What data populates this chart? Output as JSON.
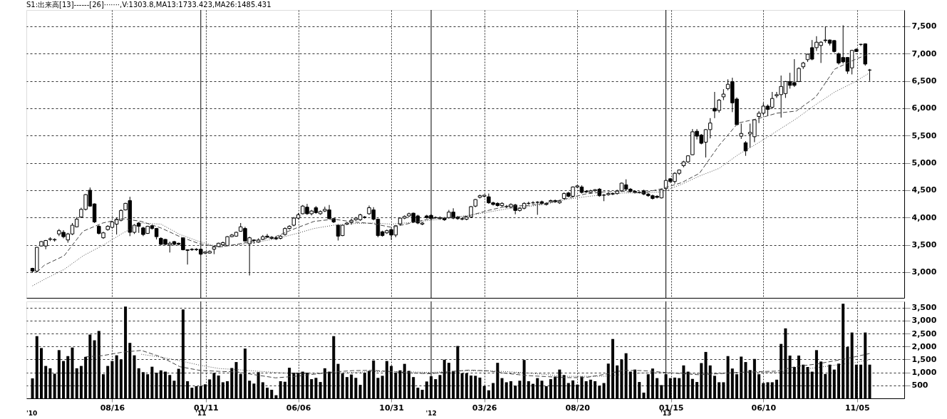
{
  "chart_data": [
    {
      "type": "candlestick",
      "title": "S1:出来高[13]------[26]·······,V:1303.8,MA13:1733.423,MA26:1485.431",
      "x": [
        "2010-04-12",
        "2010-04-19",
        "2010-04-26",
        "2010-05-03",
        "2010-05-10",
        "2010-05-17",
        "2010-05-24",
        "2010-05-31",
        "2010-06-07",
        "2010-06-14",
        "2010-06-21",
        "2010-06-28",
        "2010-07-05",
        "2010-07-12",
        "2010-07-19",
        "2010-07-26",
        "2010-08-02",
        "2010-08-09",
        "2010-08-16",
        "2010-08-23",
        "2010-08-30",
        "2010-09-06",
        "2010-09-13",
        "2010-09-20",
        "2010-09-27",
        "2010-10-04",
        "2010-10-11",
        "2010-10-18",
        "2010-10-25",
        "2010-11-01",
        "2010-11-08",
        "2010-11-15",
        "2010-11-22",
        "2010-11-29",
        "2010-12-06",
        "2010-12-13",
        "2010-12-20",
        "2010-12-27",
        "2011-01-03",
        "2011-01-10",
        "2011-01-17",
        "2011-01-24",
        "2011-01-31",
        "2011-02-07",
        "2011-02-14",
        "2011-02-21",
        "2011-02-28",
        "2011-03-07",
        "2011-03-14",
        "2011-03-21",
        "2011-03-28",
        "2011-04-04",
        "2011-04-11",
        "2011-04-18",
        "2011-04-25",
        "2011-05-02",
        "2011-05-09",
        "2011-05-16",
        "2011-05-23",
        "2011-05-30",
        "2011-06-06",
        "2011-06-13",
        "2011-06-20",
        "2011-06-27",
        "2011-07-04",
        "2011-07-11",
        "2011-07-18",
        "2011-07-25",
        "2011-08-01",
        "2011-08-08",
        "2011-08-15",
        "2011-08-22",
        "2011-08-29",
        "2011-09-05",
        "2011-09-12",
        "2011-09-19",
        "2011-09-26",
        "2011-10-03",
        "2011-10-10",
        "2011-10-17",
        "2011-10-24",
        "2011-10-31",
        "2011-11-07",
        "2011-11-14",
        "2011-11-21",
        "2011-11-28",
        "2011-12-05",
        "2011-12-12",
        "2011-12-19",
        "2011-12-26",
        "2012-01-02",
        "2012-01-09",
        "2012-01-16",
        "2012-01-23",
        "2012-01-30",
        "2012-02-06",
        "2012-02-13",
        "2012-02-20",
        "2012-02-27",
        "2012-03-05",
        "2012-03-12",
        "2012-03-19",
        "2012-03-26",
        "2012-04-02",
        "2012-04-09",
        "2012-04-16",
        "2012-04-23",
        "2012-04-30",
        "2012-05-07",
        "2012-05-14",
        "2012-05-21",
        "2012-05-28",
        "2012-06-04",
        "2012-06-11",
        "2012-06-18",
        "2012-06-25",
        "2012-07-02",
        "2012-07-09",
        "2012-07-16",
        "2012-07-23",
        "2012-07-30",
        "2012-08-06",
        "2012-08-13",
        "2012-08-20",
        "2012-08-27",
        "2012-09-03",
        "2012-09-10",
        "2012-09-17",
        "2012-09-24",
        "2012-10-01",
        "2012-10-08",
        "2012-10-15",
        "2012-10-22",
        "2012-10-29",
        "2012-11-05",
        "2012-11-12",
        "2012-11-19",
        "2012-11-26",
        "2012-12-03",
        "2012-12-10",
        "2012-12-17",
        "2012-12-24",
        "2012-12-31",
        "2013-01-07",
        "2013-01-14",
        "2013-01-21",
        "2013-01-28",
        "2013-02-04",
        "2013-02-11",
        "2013-02-18",
        "2013-02-25",
        "2013-03-04",
        "2013-03-11",
        "2013-03-18",
        "2013-03-25",
        "2013-04-01",
        "2013-04-08",
        "2013-04-15",
        "2013-04-22",
        "2013-04-29",
        "2013-05-06",
        "2013-05-13",
        "2013-05-20",
        "2013-05-27",
        "2013-06-03",
        "2013-06-10",
        "2013-06-17",
        "2013-06-24",
        "2013-07-01",
        "2013-07-08",
        "2013-07-15",
        "2013-07-22",
        "2013-07-29",
        "2013-08-05",
        "2013-08-12",
        "2013-08-19",
        "2013-08-26",
        "2013-09-02",
        "2013-09-09",
        "2013-09-16",
        "2013-09-23",
        "2013-09-30",
        "2013-10-07",
        "2013-10-14",
        "2013-10-21",
        "2013-10-28",
        "2013-11-04",
        "2013-11-11",
        "2013-11-18",
        "2013-11-25"
      ],
      "ohlc": [
        [
          3070,
          3080,
          2990,
          3020
        ],
        [
          3020,
          3460,
          3000,
          3455
        ],
        [
          3480,
          3570,
          3470,
          3560
        ],
        [
          3480,
          3590,
          3420,
          3580
        ],
        [
          3600,
          3640,
          3570,
          3610
        ],
        [
          3590,
          3620,
          3560,
          3600
        ],
        [
          3700,
          3790,
          3660,
          3760
        ],
        [
          3730,
          3770,
          3620,
          3650
        ],
        [
          3590,
          3720,
          3540,
          3700
        ],
        [
          3700,
          3900,
          3680,
          3860
        ],
        [
          3830,
          4010,
          3820,
          3970
        ],
        [
          4010,
          4180,
          3990,
          4150
        ],
        [
          4150,
          4430,
          4130,
          4420
        ],
        [
          4500,
          4550,
          4200,
          4210
        ],
        [
          4250,
          4260,
          3900,
          3920
        ],
        [
          3840,
          3860,
          3690,
          3710
        ],
        [
          3630,
          3740,
          3610,
          3720
        ],
        [
          3780,
          3860,
          3760,
          3840
        ],
        [
          3820,
          3940,
          3800,
          3920
        ],
        [
          3880,
          4000,
          3690,
          3970
        ],
        [
          3950,
          4150,
          3930,
          4130
        ],
        [
          4140,
          4270,
          4130,
          4260
        ],
        [
          4310,
          4380,
          3660,
          3730
        ],
        [
          3730,
          3880,
          3700,
          3860
        ],
        [
          3900,
          3920,
          3720,
          3840
        ],
        [
          3810,
          3830,
          3660,
          3690
        ],
        [
          3710,
          3850,
          3700,
          3840
        ],
        [
          3850,
          3870,
          3780,
          3800
        ],
        [
          3800,
          3810,
          3600,
          3650
        ],
        [
          3620,
          3640,
          3490,
          3510
        ],
        [
          3600,
          3610,
          3490,
          3510
        ],
        [
          3500,
          3560,
          3360,
          3530
        ],
        [
          3560,
          3570,
          3490,
          3510
        ],
        [
          3530,
          3540,
          3490,
          3510
        ],
        [
          3630,
          3640,
          3400,
          3410
        ],
        [
          3410,
          3420,
          3140,
          3400
        ],
        [
          3410,
          3440,
          3390,
          3420
        ],
        [
          3410,
          3440,
          3390,
          3420
        ],
        [
          3420,
          3430,
          3310,
          3330
        ],
        [
          3350,
          3380,
          3330,
          3370
        ],
        [
          3350,
          3400,
          3340,
          3380
        ],
        [
          3420,
          3470,
          3330,
          3460
        ],
        [
          3470,
          3540,
          3460,
          3530
        ],
        [
          3500,
          3560,
          3480,
          3540
        ],
        [
          3490,
          3660,
          3480,
          3650
        ],
        [
          3650,
          3700,
          3640,
          3680
        ],
        [
          3660,
          3740,
          3650,
          3730
        ],
        [
          3750,
          3900,
          3740,
          3830
        ],
        [
          3800,
          3830,
          3560,
          3570
        ],
        [
          3520,
          3650,
          2940,
          3630
        ],
        [
          3590,
          3600,
          3520,
          3580
        ],
        [
          3550,
          3620,
          3540,
          3590
        ],
        [
          3600,
          3680,
          3590,
          3650
        ],
        [
          3660,
          3700,
          3630,
          3640
        ],
        [
          3640,
          3660,
          3600,
          3620
        ],
        [
          3630,
          3650,
          3590,
          3610
        ],
        [
          3620,
          3680,
          3600,
          3660
        ],
        [
          3690,
          3820,
          3670,
          3800
        ],
        [
          3800,
          3860,
          3780,
          3840
        ],
        [
          3860,
          4010,
          3840,
          3990
        ],
        [
          3990,
          4080,
          3970,
          4050
        ],
        [
          4070,
          4230,
          4060,
          4210
        ],
        [
          4190,
          4250,
          4050,
          4070
        ],
        [
          4070,
          4140,
          4040,
          4120
        ],
        [
          4180,
          4210,
          4070,
          4090
        ],
        [
          4070,
          4130,
          4050,
          4110
        ],
        [
          4120,
          4200,
          4100,
          4150
        ],
        [
          4140,
          4230,
          3970,
          3980
        ],
        [
          3980,
          3990,
          3900,
          3920
        ],
        [
          3860,
          3880,
          3580,
          3660
        ],
        [
          3670,
          3870,
          3660,
          3860
        ],
        [
          3880,
          3920,
          3860,
          3900
        ],
        [
          3910,
          3980,
          3870,
          3950
        ],
        [
          3960,
          4010,
          3940,
          3990
        ],
        [
          3960,
          4070,
          3940,
          4050
        ],
        [
          4000,
          4030,
          3980,
          4010
        ],
        [
          4070,
          4220,
          4050,
          4180
        ],
        [
          4140,
          4190,
          3950,
          3970
        ],
        [
          3970,
          3980,
          3640,
          3670
        ],
        [
          3740,
          3760,
          3650,
          3670
        ],
        [
          3720,
          3780,
          3700,
          3760
        ],
        [
          3780,
          3800,
          3590,
          3680
        ],
        [
          3680,
          3860,
          3640,
          3850
        ],
        [
          3880,
          4000,
          3860,
          3990
        ],
        [
          3990,
          4040,
          3970,
          4020
        ],
        [
          4030,
          4090,
          4010,
          4070
        ],
        [
          4080,
          4090,
          3900,
          3920
        ],
        [
          4030,
          4050,
          3880,
          3900
        ],
        [
          3880,
          3920,
          3860,
          3900
        ],
        [
          4030,
          4050,
          3980,
          4000
        ],
        [
          4040,
          4060,
          3960,
          3980
        ],
        [
          4000,
          4020,
          3980,
          4000
        ],
        [
          4000,
          4020,
          3960,
          3980
        ],
        [
          3990,
          4010,
          3940,
          3960
        ],
        [
          4000,
          4140,
          3980,
          4100
        ],
        [
          4100,
          4170,
          3970,
          3990
        ],
        [
          4010,
          4030,
          3960,
          3980
        ],
        [
          3970,
          4000,
          3950,
          3980
        ],
        [
          3970,
          4030,
          3950,
          4010
        ],
        [
          4010,
          4210,
          3990,
          4200
        ],
        [
          4210,
          4340,
          4190,
          4330
        ],
        [
          4370,
          4420,
          4350,
          4400
        ],
        [
          4390,
          4420,
          4370,
          4410
        ],
        [
          4380,
          4440,
          4250,
          4270
        ],
        [
          4270,
          4290,
          4220,
          4240
        ],
        [
          4260,
          4280,
          4200,
          4220
        ],
        [
          4220,
          4280,
          4200,
          4260
        ],
        [
          4200,
          4230,
          4170,
          4200
        ],
        [
          4190,
          4260,
          4170,
          4240
        ],
        [
          4230,
          4250,
          4060,
          4130
        ],
        [
          4130,
          4190,
          4110,
          4170
        ],
        [
          4170,
          4280,
          4150,
          4260
        ],
        [
          4260,
          4290,
          4240,
          4260
        ],
        [
          4270,
          4300,
          4250,
          4270
        ],
        [
          4280,
          4300,
          4050,
          4280
        ],
        [
          4290,
          4310,
          4240,
          4260
        ],
        [
          4260,
          4280,
          4220,
          4240
        ],
        [
          4290,
          4330,
          4270,
          4310
        ],
        [
          4310,
          4330,
          4270,
          4290
        ],
        [
          4270,
          4320,
          4250,
          4300
        ],
        [
          4350,
          4460,
          4330,
          4440
        ],
        [
          4450,
          4470,
          4370,
          4390
        ],
        [
          4390,
          4570,
          4370,
          4560
        ],
        [
          4560,
          4600,
          4540,
          4580
        ],
        [
          4560,
          4590,
          4440,
          4460
        ],
        [
          4480,
          4500,
          4450,
          4470
        ],
        [
          4460,
          4510,
          4440,
          4490
        ],
        [
          4490,
          4520,
          4470,
          4510
        ],
        [
          4520,
          4540,
          4380,
          4400
        ],
        [
          4410,
          4430,
          4300,
          4410
        ],
        [
          4420,
          4460,
          4400,
          4440
        ],
        [
          4440,
          4460,
          4410,
          4430
        ],
        [
          4440,
          4510,
          4420,
          4490
        ],
        [
          4490,
          4640,
          4470,
          4630
        ],
        [
          4600,
          4700,
          4500,
          4520
        ],
        [
          4520,
          4540,
          4460,
          4480
        ],
        [
          4480,
          4500,
          4440,
          4460
        ],
        [
          4460,
          4480,
          4440,
          4460
        ],
        [
          4490,
          4510,
          4410,
          4430
        ],
        [
          4430,
          4450,
          4380,
          4400
        ],
        [
          4400,
          4420,
          4330,
          4350
        ],
        [
          4390,
          4410,
          4350,
          4370
        ],
        [
          4360,
          4520,
          4350,
          4510
        ],
        [
          4530,
          4690,
          4510,
          4680
        ],
        [
          4710,
          4720,
          4630,
          4660
        ],
        [
          4660,
          4830,
          4620,
          4810
        ],
        [
          4810,
          4880,
          4780,
          4870
        ],
        [
          4950,
          5040,
          4920,
          5020
        ],
        [
          5020,
          5140,
          5000,
          5130
        ],
        [
          5150,
          5620,
          5140,
          5570
        ],
        [
          5580,
          5620,
          5430,
          5490
        ],
        [
          5510,
          5530,
          5340,
          5360
        ],
        [
          5380,
          5620,
          5100,
          5610
        ],
        [
          5610,
          5820,
          5450,
          5730
        ],
        [
          6000,
          6300,
          5820,
          5950
        ],
        [
          5960,
          6170,
          5920,
          6150
        ],
        [
          6210,
          6350,
          6150,
          6260
        ],
        [
          6360,
          6530,
          6330,
          6440
        ],
        [
          6490,
          6560,
          5930,
          6100
        ],
        [
          6170,
          6200,
          5690,
          5700
        ],
        [
          5490,
          5720,
          5440,
          5540
        ],
        [
          5370,
          5400,
          5130,
          5220
        ],
        [
          5530,
          5720,
          5280,
          5560
        ],
        [
          5480,
          5800,
          5380,
          5790
        ],
        [
          5850,
          5950,
          5730,
          5910
        ],
        [
          5910,
          6100,
          5870,
          6040
        ],
        [
          6040,
          6070,
          5870,
          5980
        ],
        [
          6020,
          6300,
          5990,
          6180
        ],
        [
          6230,
          6300,
          6190,
          6250
        ],
        [
          6250,
          6600,
          5830,
          6400
        ],
        [
          6270,
          6500,
          6190,
          6490
        ],
        [
          6490,
          6650,
          6360,
          6420
        ],
        [
          6470,
          6900,
          6390,
          6420
        ],
        [
          6490,
          6750,
          6480,
          6730
        ],
        [
          6760,
          6850,
          6720,
          6830
        ],
        [
          6890,
          7000,
          6850,
          6990
        ],
        [
          7110,
          7250,
          6880,
          6900
        ],
        [
          7110,
          7320,
          7050,
          7210
        ],
        [
          7150,
          7230,
          6830,
          7210
        ],
        [
          7250,
          7500,
          7200,
          7240
        ],
        [
          7250,
          7260,
          7150,
          7190
        ],
        [
          7240,
          7250,
          7020,
          7040
        ],
        [
          7000,
          7020,
          6800,
          6830
        ],
        [
          6930,
          7520,
          6820,
          6850
        ],
        [
          6930,
          6940,
          6630,
          6680
        ],
        [
          6740,
          7070,
          6620,
          7060
        ],
        [
          7080,
          7100,
          7030,
          7040
        ],
        [
          7170,
          7180,
          7140,
          7170
        ],
        [
          7180,
          7190,
          6780,
          6810
        ],
        [
          6700,
          6720,
          6500,
          6700
        ]
      ],
      "series": [
        {
          "type": "line",
          "color": "#444444",
          "line_style": "dashed",
          "x": [
            "2010-04-19",
            "2010-05",
            "2010-06",
            "2010-07",
            "2010-08",
            "2010-09",
            "2010-10",
            "2010-11",
            "2010-12",
            "2011-01",
            "2011-02",
            "2011-03",
            "2011-04",
            "2011-05",
            "2011-06",
            "2011-07",
            "2011-08",
            "2011-09",
            "2011-10",
            "2011-11",
            "2011-12",
            "2012-01",
            "2012-02",
            "2012-03",
            "2012-04",
            "2012-05",
            "2012-06",
            "2012-07",
            "2012-08",
            "2012-09",
            "2012-10",
            "2012-11",
            "2012-12",
            "2013-01",
            "2013-02",
            "2013-03",
            "2013-04",
            "2013-05",
            "2013-06",
            "2013-07",
            "2013-08",
            "2013-09",
            "2013-10",
            "2013-11",
            "2013-11-25"
          ],
          "values": [
            3000,
            3130,
            3300,
            3750,
            3900,
            3980,
            3930,
            3810,
            3650,
            3520,
            3460,
            3510,
            3580,
            3650,
            3800,
            3930,
            3970,
            3920,
            3890,
            3820,
            3900,
            3980,
            4000,
            4030,
            4130,
            4210,
            4220,
            4260,
            4340,
            4430,
            4470,
            4480,
            4450,
            4530,
            4640,
            4810,
            5320,
            5730,
            5810,
            5910,
            5950,
            6210,
            6720,
            6890,
            7000
          ]
        },
        {
          "type": "line",
          "color": "#444444",
          "line_style": "dotted",
          "x": [
            "2010-04-12",
            "2010-05",
            "2010-06",
            "2010-07",
            "2010-08",
            "2010-09",
            "2010-10",
            "2010-11",
            "2010-12",
            "2011-01",
            "2011-02",
            "2011-03",
            "2011-04",
            "2011-05",
            "2011-06",
            "2011-07",
            "2011-08",
            "2011-09",
            "2011-10",
            "2011-11",
            "2011-12",
            "2012-01",
            "2012-02",
            "2012-03",
            "2012-04",
            "2012-05",
            "2012-06",
            "2012-07",
            "2012-08",
            "2012-09",
            "2012-10",
            "2012-11",
            "2012-12",
            "2013-01",
            "2013-02",
            "2013-03",
            "2013-04",
            "2013-05",
            "2013-06",
            "2013-07",
            "2013-08",
            "2013-09",
            "2013-10",
            "2013-11",
            "2013-11-25"
          ],
          "values": [
            2750,
            2870,
            3050,
            3300,
            3490,
            3710,
            3900,
            3880,
            3690,
            3560,
            3460,
            3500,
            3550,
            3610,
            3700,
            3800,
            3860,
            3890,
            3900,
            3880,
            3910,
            3950,
            3990,
            4040,
            4100,
            4160,
            4200,
            4240,
            4330,
            4380,
            4420,
            4450,
            4450,
            4470,
            4610,
            4760,
            4900,
            5150,
            5360,
            5580,
            5810,
            6070,
            6300,
            6480,
            6650
          ]
        }
      ],
      "xlim": [
        "2010-04-08",
        "2014-01-13"
      ],
      "xticks": [
        {
          "value": "2010-08-16",
          "label": null
        },
        {
          "value": "2011-01-11",
          "label": null
        },
        {
          "value": "2011-06-06",
          "label": null
        },
        {
          "value": "2011-10-31",
          "label": null
        },
        {
          "value": "2012-03-26",
          "label": null
        },
        {
          "value": "2012-08-20",
          "label": null
        },
        {
          "value": "2013-01-15",
          "label": null
        },
        {
          "value": "2013-06-10",
          "label": null
        },
        {
          "value": "2013-11-05",
          "label": null
        }
      ],
      "ylim": [
        2530,
        7800
      ],
      "yticks": [
        {
          "value": 3000,
          "label": "3,000"
        },
        {
          "value": 3500,
          "label": "3,500"
        },
        {
          "value": 4000,
          "label": "4,000"
        },
        {
          "value": 4500,
          "label": "4,500"
        },
        {
          "value": 5000,
          "label": "5,000"
        },
        {
          "value": 5500,
          "label": "5,500"
        },
        {
          "value": 6000,
          "label": "6,000"
        },
        {
          "value": 6500,
          "label": "6,500"
        },
        {
          "value": 7000,
          "label": "7,000"
        },
        {
          "value": 7500,
          "label": "7,500"
        }
      ],
      "grid": true,
      "tick_labels": "y",
      "ref_lines": [
        {
          "axis": "x",
          "value": "2011-01-03",
          "color": "#000000"
        },
        {
          "axis": "x",
          "value": "2012-01-02",
          "color": "#000000"
        },
        {
          "axis": "x",
          "value": "2013-01-07",
          "color": "#000000"
        }
      ]
    },
    {
      "type": "bar",
      "x": [
        "2010-04-12",
        "2010-04-19",
        "2010-04-26",
        "2010-05-03",
        "2010-05-10",
        "2010-05-17",
        "2010-05-24",
        "2010-05-31",
        "2010-06-07",
        "2010-06-14",
        "2010-06-21",
        "2010-06-28",
        "2010-07-05",
        "2010-07-12",
        "2010-07-19",
        "2010-07-26",
        "2010-08-02",
        "2010-08-09",
        "2010-08-16",
        "2010-08-23",
        "2010-08-30",
        "2010-09-06",
        "2010-09-13",
        "2010-09-20",
        "2010-09-27",
        "2010-10-04",
        "2010-10-11",
        "2010-10-18",
        "2010-10-25",
        "2010-11-01",
        "2010-11-08",
        "2010-11-15",
        "2010-11-22",
        "2010-11-29",
        "2010-12-06",
        "2010-12-13",
        "2010-12-20",
        "2010-12-27",
        "2011-01-03",
        "2011-01-10",
        "2011-01-17",
        "2011-01-24",
        "2011-01-31",
        "2011-02-07",
        "2011-02-14",
        "2011-02-21",
        "2011-02-28",
        "2011-03-07",
        "2011-03-14",
        "2011-03-21",
        "2011-03-28",
        "2011-04-04",
        "2011-04-11",
        "2011-04-18",
        "2011-04-25",
        "2011-05-02",
        "2011-05-09",
        "2011-05-16",
        "2011-05-23",
        "2011-05-30",
        "2011-06-06",
        "2011-06-13",
        "2011-06-20",
        "2011-06-27",
        "2011-07-04",
        "2011-07-11",
        "2011-07-18",
        "2011-07-25",
        "2011-08-01",
        "2011-08-08",
        "2011-08-15",
        "2011-08-22",
        "2011-08-29",
        "2011-09-05",
        "2011-09-12",
        "2011-09-19",
        "2011-09-26",
        "2011-10-03",
        "2011-10-10",
        "2011-10-17",
        "2011-10-24",
        "2011-10-31",
        "2011-11-07",
        "2011-11-14",
        "2011-11-21",
        "2011-11-28",
        "2011-12-05",
        "2011-12-12",
        "2011-12-19",
        "2011-12-26",
        "2012-01-02",
        "2012-01-09",
        "2012-01-16",
        "2012-01-23",
        "2012-01-30",
        "2012-02-06",
        "2012-02-13",
        "2012-02-20",
        "2012-02-27",
        "2012-03-05",
        "2012-03-12",
        "2012-03-19",
        "2012-03-26",
        "2012-04-02",
        "2012-04-09",
        "2012-04-16",
        "2012-04-23",
        "2012-04-30",
        "2012-05-07",
        "2012-05-14",
        "2012-05-21",
        "2012-05-28",
        "2012-06-04",
        "2012-06-11",
        "2012-06-18",
        "2012-06-25",
        "2012-07-02",
        "2012-07-09",
        "2012-07-16",
        "2012-07-23",
        "2012-07-30",
        "2012-08-06",
        "2012-08-13",
        "2012-08-20",
        "2012-08-27",
        "2012-09-03",
        "2012-09-10",
        "2012-09-17",
        "2012-09-24",
        "2012-10-01",
        "2012-10-08",
        "2012-10-15",
        "2012-10-22",
        "2012-10-29",
        "2012-11-05",
        "2012-11-12",
        "2012-11-19",
        "2012-11-26",
        "2012-12-03",
        "2012-12-10",
        "2012-12-17",
        "2012-12-24",
        "2012-12-31",
        "2013-01-07",
        "2013-01-14",
        "2013-01-21",
        "2013-01-28",
        "2013-02-04",
        "2013-02-11",
        "2013-02-18",
        "2013-02-25",
        "2013-03-04",
        "2013-03-11",
        "2013-03-18",
        "2013-03-25",
        "2013-04-01",
        "2013-04-08",
        "2013-04-15",
        "2013-04-22",
        "2013-04-29",
        "2013-05-06",
        "2013-05-13",
        "2013-05-20",
        "2013-05-27",
        "2013-06-03",
        "2013-06-10",
        "2013-06-17",
        "2013-06-24",
        "2013-07-01",
        "2013-07-08",
        "2013-07-15",
        "2013-07-22",
        "2013-07-29",
        "2013-08-05",
        "2013-08-12",
        "2013-08-19",
        "2013-08-26",
        "2013-09-02",
        "2013-09-09",
        "2013-09-16",
        "2013-09-23",
        "2013-09-30",
        "2013-10-07",
        "2013-10-14",
        "2013-10-21",
        "2013-10-28",
        "2013-11-04",
        "2013-11-11",
        "2013-11-18",
        "2013-11-25"
      ],
      "series": [
        {
          "type": "bar",
          "color": "#000000",
          "values": [
            770,
            2400,
            1940,
            1250,
            1160,
            950,
            1860,
            1440,
            1630,
            1960,
            1160,
            1250,
            1600,
            2460,
            2240,
            2600,
            930,
            1250,
            1440,
            1660,
            1500,
            3540,
            2140,
            1660,
            1160,
            1010,
            930,
            1220,
            990,
            1080,
            1030,
            900,
            680,
            1140,
            3430,
            660,
            410,
            470,
            470,
            540,
            730,
            980,
            880,
            620,
            660,
            1170,
            1400,
            940,
            1920,
            680,
            570,
            1010,
            620,
            410,
            330,
            120,
            660,
            640,
            1180,
            990,
            990,
            1030,
            990,
            740,
            790,
            630,
            1160,
            1030,
            2400,
            1330,
            960,
            820,
            920,
            790,
            520,
            990,
            1060,
            1460,
            790,
            870,
            1440,
            1250,
            990,
            1080,
            1330,
            1060,
            820,
            410,
            330,
            650,
            850,
            740,
            900,
            1490,
            1370,
            1050,
            2020,
            970,
            970,
            880,
            870,
            800,
            470,
            310,
            590,
            1370,
            780,
            620,
            660,
            490,
            680,
            1480,
            660,
            560,
            780,
            680,
            470,
            740,
            840,
            1110,
            900,
            590,
            690,
            530,
            840,
            660,
            720,
            660,
            490,
            590,
            1340,
            2290,
            1270,
            1500,
            1740,
            1030,
            1110,
            630,
            220,
            930,
            1150,
            780,
            510,
            930,
            780,
            800,
            780,
            1270,
            1030,
            750,
            630,
            1360,
            1790,
            1270,
            870,
            620,
            620,
            1630,
            1150,
            930,
            1610,
            1400,
            1090,
            1520,
            930,
            590,
            620,
            620,
            720,
            2100,
            2700,
            1650,
            1210,
            1650,
            1300,
            1210,
            1030,
            1860,
            1420,
            940,
            1300,
            1110,
            1340,
            3650,
            1980,
            2540,
            1300,
            1300,
            2540,
            1300
          ]
        },
        {
          "type": "line",
          "color": "#444444",
          "line_style": "dashed",
          "x": [
            "2010-07-05",
            "2010-08",
            "2010-09",
            "2010-10",
            "2010-11",
            "2010-12",
            "2011-01",
            "2011-02",
            "2011-03",
            "2011-04",
            "2011-05",
            "2011-06",
            "2011-07",
            "2011-08",
            "2011-09",
            "2011-10",
            "2011-11",
            "2011-12",
            "2012-01",
            "2012-02",
            "2012-03",
            "2012-04",
            "2012-05",
            "2012-06",
            "2012-07",
            "2012-08",
            "2012-09",
            "2012-10",
            "2012-11",
            "2012-12",
            "2013-01",
            "2013-02",
            "2013-03",
            "2013-04",
            "2013-05",
            "2013-06",
            "2013-07",
            "2013-08",
            "2013-09",
            "2013-10",
            "2013-11",
            "2013-11-25"
          ],
          "values": [
            1600,
            1650,
            1780,
            1850,
            1600,
            1220,
            1080,
            1040,
            1020,
            900,
            790,
            850,
            930,
            1020,
            1070,
            1080,
            1030,
            980,
            950,
            1030,
            1090,
            1060,
            960,
            880,
            840,
            800,
            800,
            920,
            1080,
            1070,
            1010,
            950,
            910,
            950,
            1000,
            1030,
            1050,
            1230,
            1320,
            1450,
            1600,
            1730
          ]
        },
        {
          "type": "line",
          "color": "#444444",
          "line_style": "dotted",
          "x": [
            "2010-10",
            "2010-11",
            "2010-12",
            "2011-01",
            "2011-02",
            "2011-03",
            "2011-04",
            "2011-05",
            "2011-06",
            "2011-07",
            "2011-08",
            "2011-09",
            "2011-10",
            "2011-11",
            "2011-12",
            "2012-01",
            "2012-02",
            "2012-03",
            "2012-04",
            "2012-05",
            "2012-06",
            "2012-07",
            "2012-08",
            "2012-09",
            "2012-10",
            "2012-11",
            "2012-12",
            "2013-01",
            "2013-02",
            "2013-03",
            "2013-04",
            "2013-05",
            "2013-06",
            "2013-07",
            "2013-08",
            "2013-09",
            "2013-10",
            "2013-11",
            "2013-11-25"
          ],
          "values": [
            1700,
            1590,
            1450,
            1280,
            1150,
            1110,
            1050,
            1000,
            950,
            960,
            980,
            1000,
            1030,
            1040,
            1020,
            1000,
            1040,
            1070,
            1060,
            1030,
            980,
            920,
            850,
            850,
            850,
            920,
            980,
            990,
            970,
            950,
            970,
            1000,
            1000,
            1000,
            1100,
            1180,
            1280,
            1380,
            1490
          ]
        }
      ],
      "xlim": [
        "2010-04-08",
        "2014-01-13"
      ],
      "xticks": [
        {
          "value": "2010-08-16",
          "label": "08/16"
        },
        {
          "value": "2011-01-11",
          "label": "01/11"
        },
        {
          "value": "2011-06-06",
          "label": "06/06"
        },
        {
          "value": "2011-10-31",
          "label": "10/31"
        },
        {
          "value": "2012-03-26",
          "label": "03/26"
        },
        {
          "value": "2012-08-20",
          "label": "08/20"
        },
        {
          "value": "2013-01-15",
          "label": "01/15"
        },
        {
          "value": "2013-06-10",
          "label": "06/10"
        },
        {
          "value": "2013-11-05",
          "label": "11/05"
        }
      ],
      "ylim": [
        0,
        3740
      ],
      "yticks": [
        {
          "value": 500,
          "label": "500"
        },
        {
          "value": 1000,
          "label": "1,000"
        },
        {
          "value": 1500,
          "label": "1,500"
        },
        {
          "value": 2000,
          "label": "2,000"
        },
        {
          "value": 2500,
          "label": "2,500"
        },
        {
          "value": 3000,
          "label": "3,000"
        },
        {
          "value": 3500,
          "label": "3,500"
        }
      ],
      "grid": true,
      "annotations": [
        "'10"
      ],
      "ref_lines": [
        {
          "axis": "x",
          "value": "2011-01-03",
          "label": "'11",
          "color": "#000000"
        },
        {
          "axis": "x",
          "value": "2012-01-02",
          "label": "'12",
          "color": "#000000"
        },
        {
          "axis": "x",
          "value": "2013-01-07",
          "label": "'13",
          "color": "#000000"
        }
      ]
    }
  ]
}
